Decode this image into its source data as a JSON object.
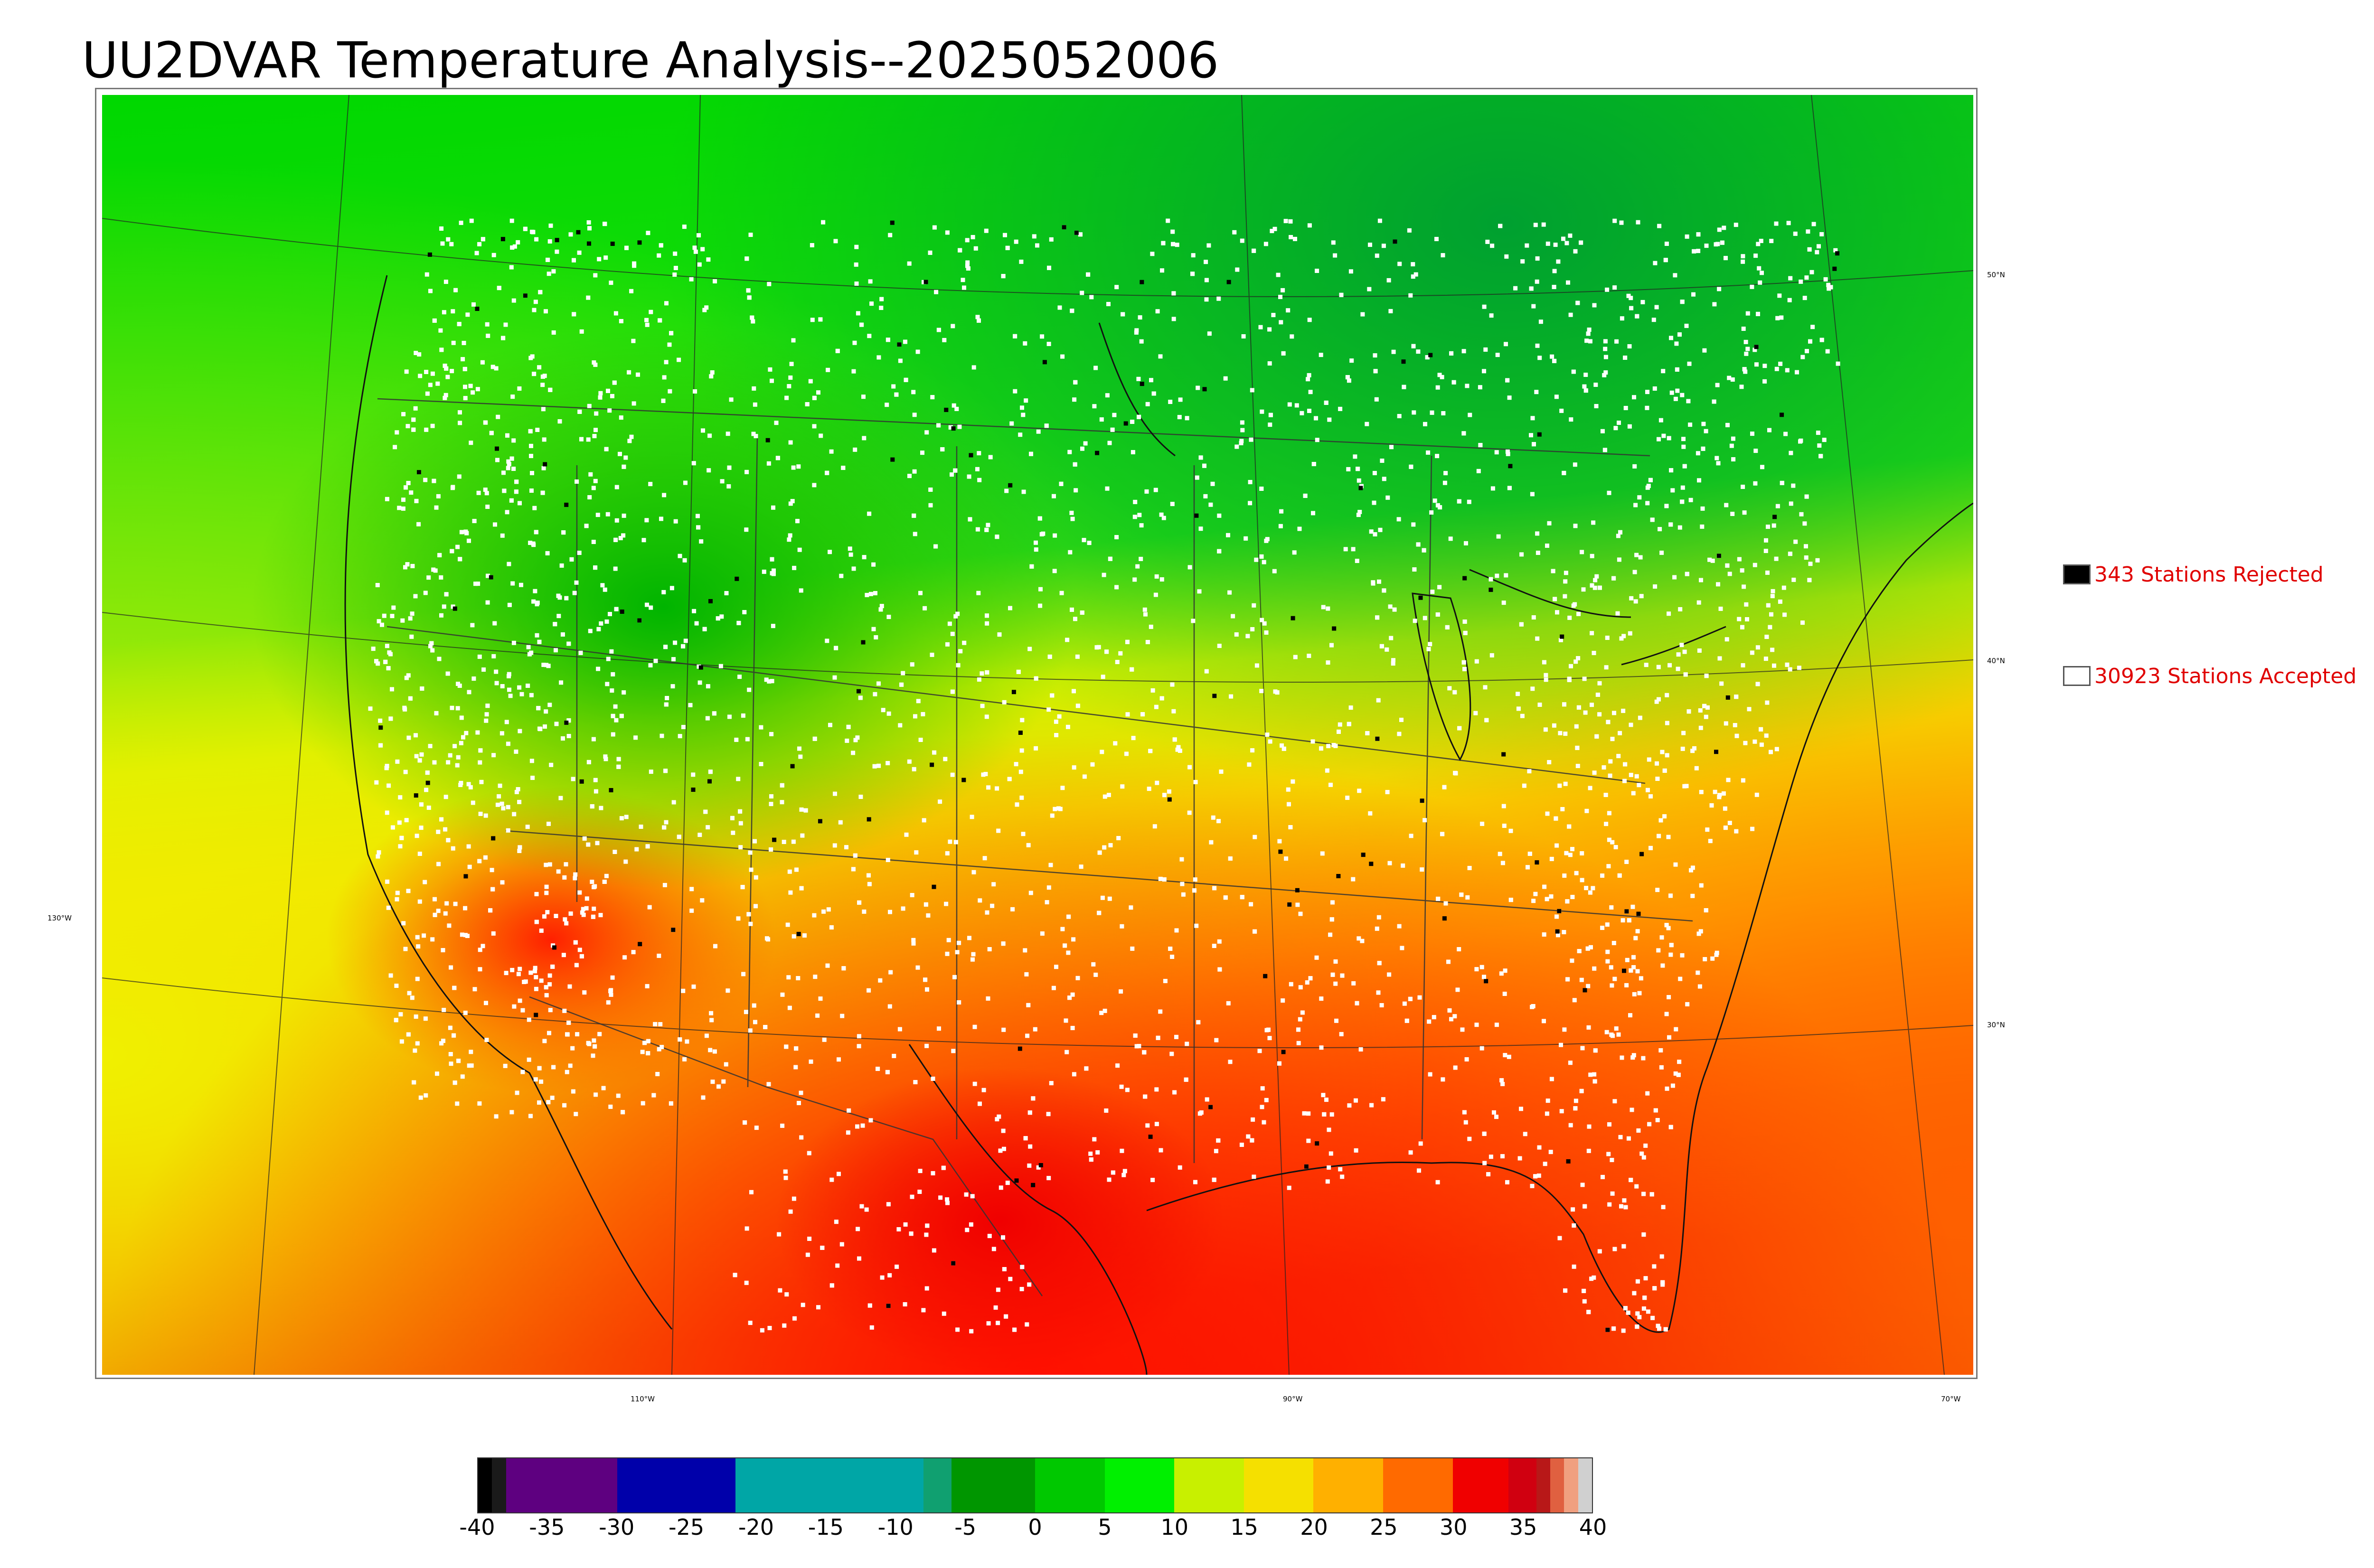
{
  "title": "UU2DVAR Temperature Analysis--2025052006",
  "graticule": {
    "lat_labels": [
      "50°N",
      "40°N",
      "30°N"
    ],
    "lon_labels": [
      "130°W",
      "110°W",
      "90°W",
      "70°W"
    ]
  },
  "legend": {
    "rejected": {
      "count": 343,
      "label": "343 Stations Rejected",
      "swatch_color": "#000000"
    },
    "accepted": {
      "count": 30923,
      "label": "30923 Stations Accepted",
      "swatch_color": "#ffffff"
    }
  },
  "colorbar": {
    "ticks": [
      "-40",
      "-35",
      "-30",
      "-25",
      "-20",
      "-15",
      "-10",
      "-5",
      "0",
      "5",
      "10",
      "15",
      "20",
      "25",
      "30",
      "35",
      "40"
    ],
    "range": [
      -40,
      40
    ],
    "segments": [
      {
        "from": -40,
        "to": -39,
        "color": "#000000"
      },
      {
        "from": -39,
        "to": -38,
        "color": "#1a1a1a"
      },
      {
        "from": -38,
        "to": -30,
        "color": "#5e0080"
      },
      {
        "from": -30,
        "to": -21.5,
        "color": "#0000aa"
      },
      {
        "from": -21.5,
        "to": -8,
        "color": "#00a6a6"
      },
      {
        "from": -8,
        "to": -6,
        "color": "#10a070"
      },
      {
        "from": -6,
        "to": 0,
        "color": "#009600"
      },
      {
        "from": 0,
        "to": 5,
        "color": "#00c800"
      },
      {
        "from": 5,
        "to": 10,
        "color": "#00f000"
      },
      {
        "from": 10,
        "to": 15,
        "color": "#c8f000"
      },
      {
        "from": 15,
        "to": 20,
        "color": "#f5e000"
      },
      {
        "from": 20,
        "to": 25,
        "color": "#ffb000"
      },
      {
        "from": 25,
        "to": 30,
        "color": "#ff6a00"
      },
      {
        "from": 30,
        "to": 34,
        "color": "#f00000"
      },
      {
        "from": 34,
        "to": 36,
        "color": "#d00010"
      },
      {
        "from": 36,
        "to": 37,
        "color": "#b81818"
      },
      {
        "from": 37,
        "to": 38,
        "color": "#e06040"
      },
      {
        "from": 38,
        "to": 39,
        "color": "#f0a080"
      },
      {
        "from": 39,
        "to": 40,
        "color": "#d0d0d0"
      }
    ]
  },
  "colors": {
    "accepted_station": "#ffffff",
    "rejected_station": "#000000",
    "legend_text": "#e00000"
  }
}
